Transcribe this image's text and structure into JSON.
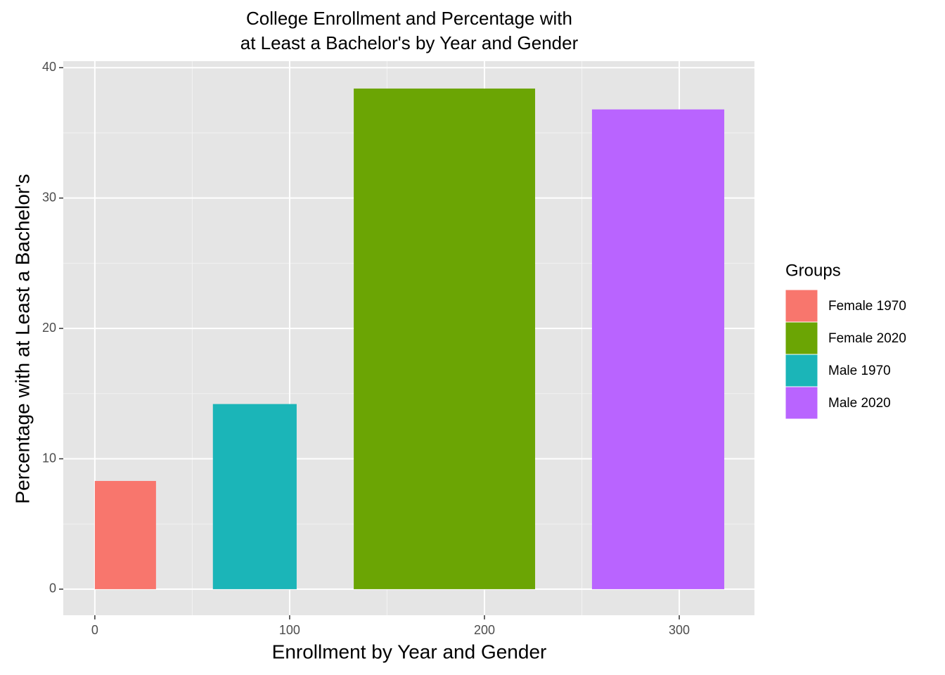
{
  "chart_data": {
    "type": "bar",
    "title": [
      "College Enrollment and Percentage with",
      "at Least a Bachelor's by Year and Gender"
    ],
    "x_label": "Enrollment by Year and Gender",
    "y_label": "Percentage with at Least a Bachelor's",
    "legend_title": "Groups",
    "series": [
      {
        "name": "Female 1970",
        "color": "#f8766d",
        "value": 8.3,
        "xmin": 0,
        "xmax": 31.4
      },
      {
        "name": "Female 2020",
        "color": "#6ba504",
        "value": 38.4,
        "xmin": 132.9,
        "xmax": 226
      },
      {
        "name": "Male 1970",
        "color": "#1bb5b8",
        "value": 14.2,
        "xmin": 60.6,
        "xmax": 103.6
      },
      {
        "name": "Male 2020",
        "color": "#b964ff",
        "value": 36.8,
        "xmin": 255.2,
        "xmax": 323.1
      }
    ],
    "xlim": [
      -16.2,
      338.6
    ],
    "xticks": [
      0,
      100,
      200,
      300
    ],
    "ylim": [
      -2.0,
      40.5
    ],
    "yticks": [
      0,
      10,
      20,
      30,
      40
    ],
    "grid": true,
    "legend": "right"
  }
}
